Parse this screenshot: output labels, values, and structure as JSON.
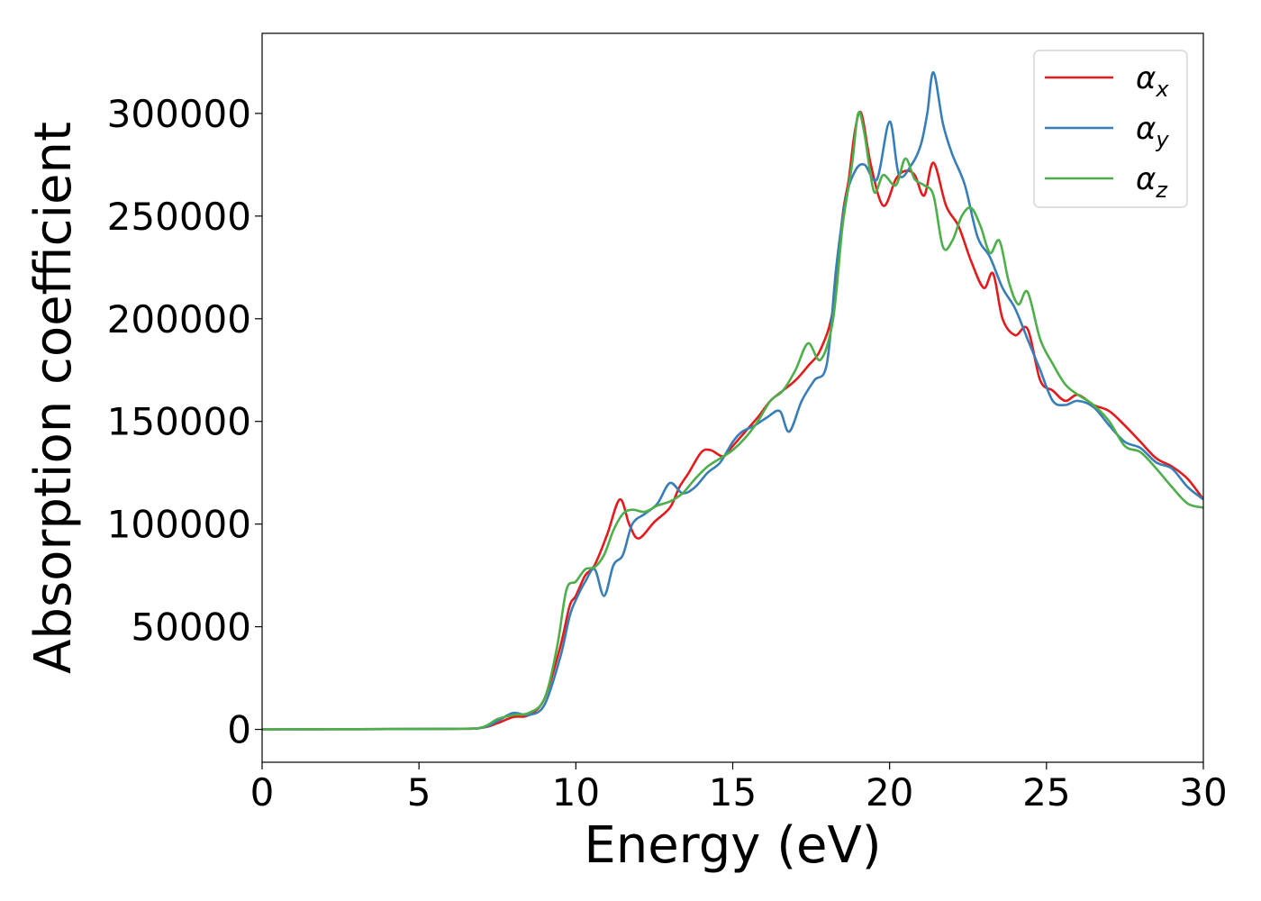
{
  "chart_data": {
    "type": "line",
    "title": "",
    "xlabel": "Energy (eV)",
    "ylabel": "Absorption coefficient",
    "xlim": [
      0,
      30
    ],
    "ylim": [
      -16000,
      339000
    ],
    "xticks": [
      0,
      5,
      10,
      15,
      20,
      25,
      30
    ],
    "yticks": [
      0,
      50000,
      100000,
      150000,
      200000,
      250000,
      300000
    ],
    "grid": false,
    "legend_position": "top-right",
    "series": [
      {
        "name": "α",
        "subscript": "x",
        "color": "#e41a1c",
        "x": [
          0,
          6,
          7,
          7.5,
          8,
          8.5,
          9,
          9.5,
          9.8,
          10,
          10.3,
          10.6,
          11,
          11.4,
          11.7,
          12,
          12.5,
          13,
          13.3,
          13.6,
          14,
          14.3,
          14.7,
          15,
          15.4,
          15.8,
          16.2,
          16.6,
          17,
          17.4,
          17.8,
          18.2,
          18.5,
          18.7,
          18.9,
          19.1,
          19.4,
          19.8,
          20.2,
          20.5,
          20.8,
          21.1,
          21.4,
          21.8,
          22.2,
          22.6,
          23,
          23.3,
          23.6,
          24,
          24.4,
          24.8,
          25.2,
          25.6,
          26,
          26.5,
          27,
          27.5,
          28,
          28.5,
          29,
          29.5,
          30
        ],
        "y": [
          0,
          300,
          800,
          3000,
          6000,
          7000,
          15000,
          40000,
          60000,
          65000,
          75000,
          80000,
          95000,
          112000,
          100000,
          93000,
          101000,
          108000,
          118000,
          125000,
          135000,
          136000,
          133000,
          138000,
          145000,
          152000,
          160000,
          165000,
          170000,
          177000,
          185000,
          205000,
          250000,
          268000,
          292000,
          300000,
          275000,
          255000,
          268000,
          272000,
          270000,
          260000,
          276000,
          255000,
          245000,
          228000,
          215000,
          222000,
          200000,
          192000,
          195000,
          170000,
          165000,
          160000,
          163000,
          158000,
          155000,
          148000,
          140000,
          132000,
          128000,
          122000,
          112000
        ]
      },
      {
        "name": "α",
        "subscript": "y",
        "color": "#377eb8",
        "x": [
          0,
          6,
          7,
          7.5,
          8,
          8.5,
          9,
          9.5,
          9.8,
          10,
          10.3,
          10.6,
          10.9,
          11.2,
          11.5,
          11.8,
          12.2,
          12.6,
          13,
          13.4,
          13.8,
          14.2,
          14.6,
          15,
          15.3,
          15.7,
          16.1,
          16.5,
          16.8,
          17.2,
          17.6,
          18,
          18.3,
          18.6,
          18.9,
          19.2,
          19.6,
          20,
          20.3,
          20.7,
          21,
          21.2,
          21.4,
          21.7,
          22,
          22.4,
          22.8,
          23.2,
          23.6,
          24,
          24.4,
          24.8,
          25.2,
          25.6,
          26,
          26.5,
          27,
          27.5,
          28,
          28.5,
          29,
          29.5,
          30
        ],
        "y": [
          0,
          300,
          800,
          4000,
          8000,
          7000,
          12000,
          35000,
          55000,
          63000,
          72000,
          78000,
          65000,
          80000,
          85000,
          100000,
          105000,
          110000,
          120000,
          115000,
          118000,
          125000,
          130000,
          140000,
          145000,
          148000,
          152000,
          155000,
          145000,
          160000,
          170000,
          178000,
          225000,
          258000,
          272000,
          275000,
          268000,
          296000,
          270000,
          275000,
          285000,
          300000,
          320000,
          295000,
          280000,
          265000,
          240000,
          230000,
          215000,
          205000,
          190000,
          175000,
          160000,
          158000,
          160000,
          157000,
          148000,
          140000,
          137000,
          130000,
          127000,
          118000,
          112000
        ]
      },
      {
        "name": "α",
        "subscript": "z",
        "color": "#4daf4a",
        "x": [
          0,
          6,
          7,
          7.5,
          8,
          8.5,
          9,
          9.4,
          9.7,
          10,
          10.3,
          10.6,
          10.9,
          11.2,
          11.5,
          11.8,
          12.2,
          12.6,
          13,
          13.4,
          13.8,
          14.2,
          14.6,
          15,
          15.4,
          15.8,
          16.2,
          16.6,
          17,
          17.4,
          17.8,
          18.2,
          18.5,
          18.8,
          19,
          19.2,
          19.5,
          19.8,
          20.2,
          20.5,
          20.8,
          21.1,
          21.4,
          21.7,
          22,
          22.3,
          22.6,
          22.9,
          23.2,
          23.5,
          23.8,
          24.1,
          24.4,
          24.8,
          25.2,
          25.6,
          26,
          26.5,
          27,
          27.5,
          28,
          28.5,
          29,
          29.5,
          30
        ],
        "y": [
          0,
          300,
          1000,
          5000,
          7000,
          8000,
          15000,
          40000,
          68000,
          72000,
          78000,
          79000,
          85000,
          97000,
          105000,
          107000,
          106000,
          109000,
          111000,
          115000,
          122000,
          128000,
          132000,
          136000,
          142000,
          150000,
          160000,
          165000,
          175000,
          188000,
          180000,
          200000,
          245000,
          275000,
          300000,
          290000,
          262000,
          270000,
          265000,
          278000,
          268000,
          265000,
          260000,
          235000,
          238000,
          250000,
          254000,
          245000,
          232000,
          238000,
          218000,
          207000,
          213000,
          190000,
          178000,
          168000,
          163000,
          158000,
          150000,
          138000,
          135000,
          127000,
          118000,
          110000,
          108000
        ]
      }
    ]
  }
}
